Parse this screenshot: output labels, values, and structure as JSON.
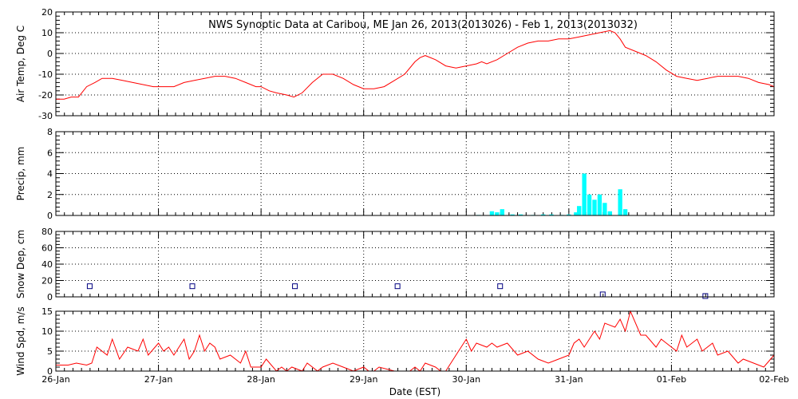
{
  "title": "NWS Synoptic Data at Caribou, ME   Jan 26, 2013(2013026) - Feb  1, 2013(2013032)",
  "xlabel": "Date (EST)",
  "x_tick_labels": [
    "26-Jan",
    "27-Jan",
    "28-Jan",
    "29-Jan",
    "30-Jan",
    "31-Jan",
    "01-Feb",
    "02-Feb"
  ],
  "colors": {
    "line": "#ff0000",
    "precip": "#00ffff",
    "snow": "#000080"
  },
  "chart_data": [
    {
      "type": "line",
      "ylabel": "Air Temp, Deg C",
      "ylim": [
        -30,
        20
      ],
      "yticks": [
        -30,
        -20,
        -10,
        0,
        10,
        20
      ],
      "xlim": [
        0,
        7
      ],
      "grid": true,
      "series": [
        {
          "x": [
            0.0,
            0.08,
            0.15,
            0.22,
            0.3,
            0.38,
            0.45,
            0.55,
            0.65,
            0.75,
            0.85,
            0.95,
            1.05,
            1.15,
            1.25,
            1.35,
            1.45,
            1.55,
            1.65,
            1.75,
            1.85,
            1.95,
            2.0,
            2.08,
            2.15,
            2.25,
            2.32,
            2.4,
            2.5,
            2.6,
            2.7,
            2.8,
            2.9,
            3.0,
            3.1,
            3.2,
            3.3,
            3.4,
            3.5,
            3.55,
            3.6,
            3.7,
            3.8,
            3.9,
            4.0,
            4.1,
            4.15,
            4.2,
            4.3,
            4.4,
            4.5,
            4.6,
            4.7,
            4.8,
            4.9,
            5.0,
            5.1,
            5.2,
            5.3,
            5.4,
            5.45,
            5.5,
            5.55,
            5.65,
            5.75,
            5.85,
            5.95,
            6.05,
            6.15,
            6.25,
            6.35,
            6.45,
            6.55,
            6.65,
            6.75,
            6.85,
            6.95,
            7.0
          ],
          "y": [
            -22,
            -22,
            -21,
            -21,
            -16,
            -14,
            -12,
            -12,
            -13,
            -14,
            -15,
            -16,
            -16,
            -16,
            -14,
            -13,
            -12,
            -11,
            -11,
            -12,
            -14,
            -16,
            -16,
            -18,
            -19,
            -20,
            -21,
            -19,
            -14,
            -10,
            -10,
            -12,
            -15,
            -17,
            -17,
            -16,
            -13,
            -10,
            -4,
            -2,
            -1,
            -3,
            -6,
            -7,
            -6,
            -5,
            -4,
            -5,
            -3,
            0,
            3,
            5,
            6,
            6,
            7,
            7,
            8,
            9,
            10,
            11,
            10,
            7,
            3,
            1,
            -1,
            -4,
            -8,
            -11,
            -12,
            -13,
            -12,
            -11,
            -11,
            -11,
            -12,
            -14,
            -15,
            -16
          ]
        }
      ]
    },
    {
      "type": "bar",
      "ylabel": "Precip, mm",
      "ylim": [
        0,
        8
      ],
      "yticks": [
        0,
        2,
        4,
        6,
        8
      ],
      "xlim": [
        0,
        7
      ],
      "grid": true,
      "series": [
        {
          "x": [
            4.12,
            4.25,
            4.3,
            4.35,
            4.45,
            4.53,
            4.65,
            4.75,
            4.83,
            4.93,
            5.0,
            5.07,
            5.1,
            5.15,
            5.2,
            5.25,
            5.3,
            5.35,
            5.4,
            5.5,
            5.55
          ],
          "values": [
            0.05,
            0.4,
            0.3,
            0.6,
            0.1,
            0.1,
            0.05,
            0.1,
            0.1,
            0.05,
            0.1,
            0.3,
            0.9,
            4.0,
            2.0,
            1.5,
            2.0,
            1.2,
            0.4,
            2.5,
            0.6
          ]
        }
      ]
    },
    {
      "type": "scatter",
      "ylabel": "Snow Dep, cm",
      "ylim": [
        0,
        80
      ],
      "yticks": [
        0,
        20,
        40,
        60,
        80
      ],
      "xlim": [
        0,
        7
      ],
      "grid": true,
      "series": [
        {
          "x": [
            0.33,
            1.33,
            2.33,
            3.33,
            4.33,
            5.33,
            6.33
          ],
          "values": [
            13,
            13,
            13,
            13,
            13,
            3,
            1
          ]
        }
      ]
    },
    {
      "type": "line",
      "ylabel": "Wind Spd, m/s",
      "ylim": [
        0,
        15
      ],
      "yticks": [
        0,
        5,
        10,
        15
      ],
      "xlim": [
        0,
        7
      ],
      "grid": true,
      "series": [
        {
          "x": [
            0.0,
            0.12,
            0.2,
            0.3,
            0.35,
            0.4,
            0.5,
            0.55,
            0.62,
            0.7,
            0.8,
            0.85,
            0.9,
            1.0,
            1.05,
            1.1,
            1.15,
            1.25,
            1.3,
            1.35,
            1.4,
            1.45,
            1.5,
            1.55,
            1.6,
            1.7,
            1.8,
            1.85,
            1.9,
            2.0,
            2.05,
            2.15,
            2.2,
            2.25,
            2.3,
            2.4,
            2.45,
            2.55,
            2.6,
            2.7,
            2.8,
            2.9,
            3.0,
            3.05,
            3.1,
            3.15,
            3.3,
            3.45,
            3.5,
            3.55,
            3.6,
            3.7,
            3.75,
            3.8,
            3.9,
            4.0,
            4.05,
            4.1,
            4.2,
            4.25,
            4.3,
            4.4,
            4.5,
            4.6,
            4.7,
            4.8,
            4.9,
            5.0,
            5.05,
            5.1,
            5.15,
            5.25,
            5.3,
            5.35,
            5.45,
            5.5,
            5.55,
            5.6,
            5.7,
            5.75,
            5.85,
            5.9,
            5.95,
            6.05,
            6.1,
            6.15,
            6.25,
            6.3,
            6.4,
            6.45,
            6.55,
            6.65,
            6.7,
            6.8,
            6.9,
            7.0
          ],
          "y": [
            1.5,
            1.5,
            2,
            1.5,
            2,
            6,
            4,
            8,
            3,
            6,
            5,
            8,
            4,
            7,
            5,
            6,
            4,
            8,
            3,
            5,
            9,
            5,
            7,
            6,
            3,
            4,
            2,
            5,
            1,
            1,
            3,
            0,
            1,
            0,
            1,
            0,
            2,
            0,
            1,
            2,
            1,
            0,
            1,
            0,
            0,
            1,
            0,
            0,
            1,
            0,
            2,
            1,
            0,
            0,
            4,
            8,
            5,
            7,
            6,
            7,
            6,
            7,
            4,
            5,
            3,
            2,
            3,
            4,
            7,
            8,
            6,
            10,
            8,
            12,
            11,
            13,
            10,
            15,
            9,
            9,
            6,
            8,
            7,
            5,
            9,
            6,
            8,
            5,
            7,
            4,
            5,
            2,
            3,
            2,
            1,
            4
          ]
        }
      ]
    }
  ]
}
